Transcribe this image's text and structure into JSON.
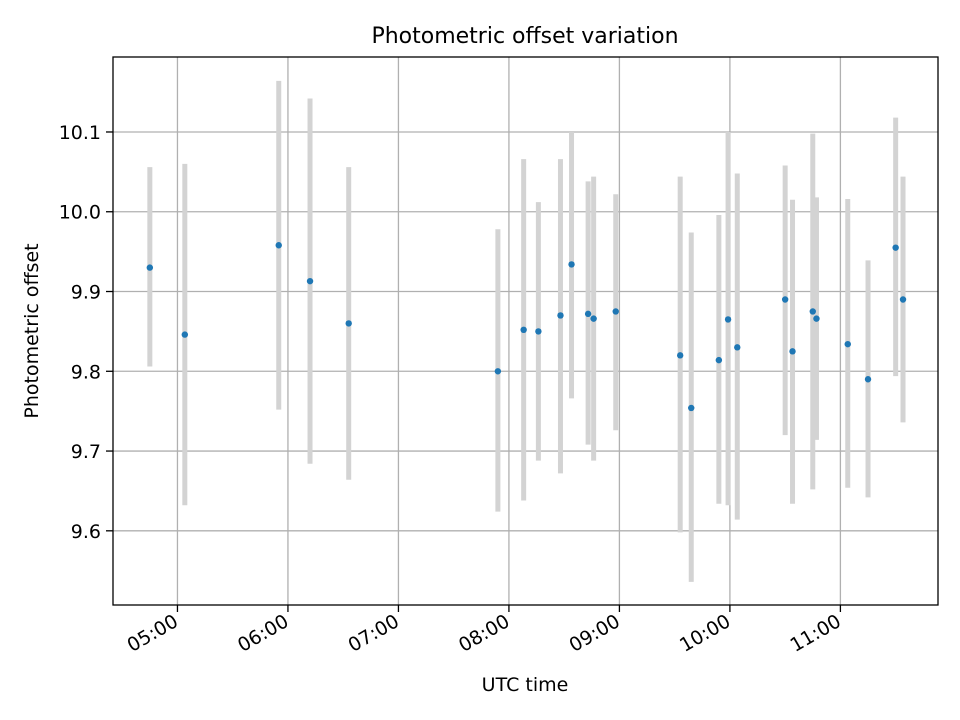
{
  "chart_data": {
    "type": "scatter",
    "title": "Photometric offset variation",
    "xlabel": "UTC time",
    "ylabel": "Photometric offset",
    "x_type": "time",
    "xlim": [
      "04:25",
      "11:53"
    ],
    "ylim": [
      9.507,
      10.194
    ],
    "x_ticks": [
      "05:00",
      "06:00",
      "07:00",
      "08:00",
      "09:00",
      "10:00",
      "11:00"
    ],
    "y_ticks": [
      9.6,
      9.7,
      9.8,
      9.9,
      10.0,
      10.1
    ],
    "y_tick_labels": [
      "9.6",
      "9.7",
      "9.8",
      "9.9",
      "10.0",
      "10.1"
    ],
    "grid": true,
    "colors": {
      "marker": "#1f77b4",
      "errorbar": "#d3d3d3",
      "grid": "#b0b0b0",
      "axes": "#000000"
    },
    "points": [
      {
        "x": "04:45",
        "y": 9.93,
        "ylo": 9.806,
        "yhi": 10.056
      },
      {
        "x": "05:04",
        "y": 9.846,
        "ylo": 9.632,
        "yhi": 10.06
      },
      {
        "x": "05:55",
        "y": 9.958,
        "ylo": 9.752,
        "yhi": 10.164
      },
      {
        "x": "06:12",
        "y": 9.913,
        "ylo": 9.684,
        "yhi": 10.142
      },
      {
        "x": "06:33",
        "y": 9.86,
        "ylo": 9.664,
        "yhi": 10.056
      },
      {
        "x": "07:54",
        "y": 9.8,
        "ylo": 9.624,
        "yhi": 9.978
      },
      {
        "x": "08:08",
        "y": 9.852,
        "ylo": 9.638,
        "yhi": 10.066
      },
      {
        "x": "08:16",
        "y": 9.85,
        "ylo": 9.688,
        "yhi": 10.012
      },
      {
        "x": "08:28",
        "y": 9.87,
        "ylo": 9.672,
        "yhi": 10.066
      },
      {
        "x": "08:34",
        "y": 9.934,
        "ylo": 9.766,
        "yhi": 10.1
      },
      {
        "x": "08:43",
        "y": 9.872,
        "ylo": 9.708,
        "yhi": 10.038
      },
      {
        "x": "08:46",
        "y": 9.866,
        "ylo": 9.688,
        "yhi": 10.044
      },
      {
        "x": "08:58",
        "y": 9.875,
        "ylo": 9.726,
        "yhi": 10.022
      },
      {
        "x": "09:33",
        "y": 9.82,
        "ylo": 9.598,
        "yhi": 10.044
      },
      {
        "x": "09:39",
        "y": 9.754,
        "ylo": 9.536,
        "yhi": 9.974
      },
      {
        "x": "09:54",
        "y": 9.814,
        "ylo": 9.634,
        "yhi": 9.996
      },
      {
        "x": "09:59",
        "y": 9.865,
        "ylo": 9.632,
        "yhi": 10.1
      },
      {
        "x": "10:04",
        "y": 9.83,
        "ylo": 9.614,
        "yhi": 10.048
      },
      {
        "x": "10:30",
        "y": 9.89,
        "ylo": 9.72,
        "yhi": 10.058
      },
      {
        "x": "10:34",
        "y": 9.825,
        "ylo": 9.634,
        "yhi": 10.015
      },
      {
        "x": "10:45",
        "y": 9.875,
        "ylo": 9.652,
        "yhi": 10.098
      },
      {
        "x": "10:47",
        "y": 9.866,
        "ylo": 9.714,
        "yhi": 10.018
      },
      {
        "x": "11:04",
        "y": 9.834,
        "ylo": 9.654,
        "yhi": 10.016
      },
      {
        "x": "11:15",
        "y": 9.79,
        "ylo": 9.642,
        "yhi": 9.939
      },
      {
        "x": "11:30",
        "y": 9.955,
        "ylo": 9.794,
        "yhi": 10.118
      },
      {
        "x": "11:34",
        "y": 9.89,
        "ylo": 9.736,
        "yhi": 10.044
      }
    ]
  }
}
